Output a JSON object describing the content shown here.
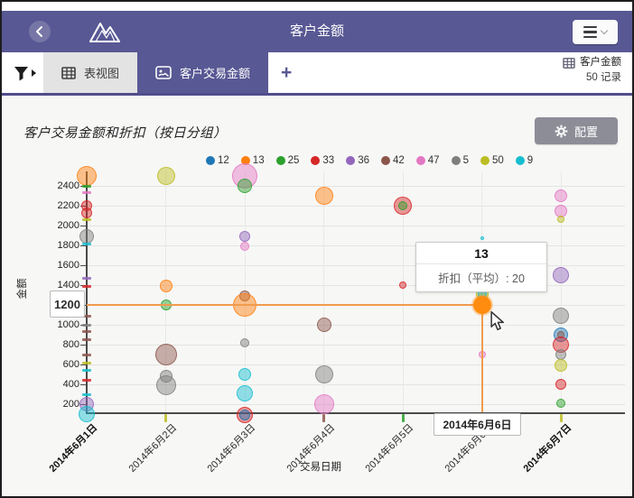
{
  "app_bar": {
    "title": "客户金额"
  },
  "tab_bar": {
    "tabs": [
      {
        "label": "表视图",
        "active": false
      },
      {
        "label": "客户交易金额",
        "active": true
      }
    ],
    "add_label": "+",
    "info_title": "客户金额",
    "info_records": "50 记录"
  },
  "chart_header": {
    "title": "客户交易金额和折扣（按日分组）",
    "config_label": "配置"
  },
  "tooltip": {
    "title": "13",
    "line": "折扣（平均）: 20"
  },
  "crosshair": {
    "x_label": "2014年6月6日",
    "y_label": "1200",
    "series": "13",
    "x_index": 6,
    "y_value": 1200
  },
  "colors": {
    "accent_purple": "#585894",
    "crosshair_orange": "#f09b4e",
    "hover_orange": "#ff8c0e"
  },
  "chart_data": {
    "type": "scatter",
    "title": "客户交易金额和折扣（按日分组）",
    "xlabel": "交易日期",
    "ylabel": "金额",
    "x_categories": [
      {
        "label": "2014年6月1日",
        "bold": true
      },
      {
        "label": "2014年6月2日",
        "bold": false
      },
      {
        "label": "2014年6月3日",
        "bold": false
      },
      {
        "label": "2014年6月4日",
        "bold": false
      },
      {
        "label": "2014年6月5日",
        "bold": false
      },
      {
        "label": "2014年6月6日",
        "bold": false
      },
      {
        "label": "2014年6月7日",
        "bold": true
      }
    ],
    "y_ticks": [
      200,
      400,
      600,
      800,
      1000,
      1200,
      1400,
      1600,
      1800,
      2000,
      2200,
      2400
    ],
    "ylim": [
      0,
      2550
    ],
    "grid": true,
    "legend_position": "top",
    "series_legend": [
      {
        "name": "12",
        "color": "#1f77b4"
      },
      {
        "name": "13",
        "color": "#ff7f0e"
      },
      {
        "name": "25",
        "color": "#2ca02c"
      },
      {
        "name": "33",
        "color": "#d62728"
      },
      {
        "name": "36",
        "color": "#9467bd"
      },
      {
        "name": "42",
        "color": "#8c564b"
      },
      {
        "name": "47",
        "color": "#e377c2"
      },
      {
        "name": "5",
        "color": "#7f7f7f"
      },
      {
        "name": "50",
        "color": "#bcbd22"
      },
      {
        "name": "9",
        "color": "#17becf"
      }
    ],
    "points": [
      {
        "series": "13",
        "x": 1,
        "y": 2500,
        "r": 11
      },
      {
        "series": "25",
        "x": 1,
        "y": 2400,
        "mark": "dash-y"
      },
      {
        "series": "47",
        "x": 1,
        "y": 2330,
        "mark": "dash-y"
      },
      {
        "series": "33",
        "x": 1,
        "y": 2200,
        "r": 6
      },
      {
        "series": "33",
        "x": 1,
        "y": 2130,
        "r": 6
      },
      {
        "series": "50",
        "x": 1,
        "y": 2060,
        "mark": "dash-y"
      },
      {
        "series": "5",
        "x": 1,
        "y": 1890,
        "r": 8
      },
      {
        "series": "9",
        "x": 1,
        "y": 1810,
        "mark": "dash-y"
      },
      {
        "series": "36",
        "x": 1,
        "y": 1470,
        "mark": "dash-y"
      },
      {
        "series": "33",
        "x": 1,
        "y": 1390,
        "mark": "dash-y"
      },
      {
        "series": "42",
        "x": 1,
        "y": 1090,
        "mark": "dash-y"
      },
      {
        "series": "5",
        "x": 1,
        "y": 1000,
        "mark": "dash-y"
      },
      {
        "series": "42",
        "x": 1,
        "y": 930,
        "mark": "dash-y"
      },
      {
        "series": "42",
        "x": 1,
        "y": 850,
        "mark": "dash-y"
      },
      {
        "series": "42",
        "x": 1,
        "y": 700,
        "mark": "dash-y"
      },
      {
        "series": "50",
        "x": 1,
        "y": 610,
        "mark": "dash-y"
      },
      {
        "series": "9",
        "x": 1,
        "y": 540,
        "mark": "dash-y"
      },
      {
        "series": "33",
        "x": 1,
        "y": 440,
        "mark": "dash-y"
      },
      {
        "series": "9",
        "x": 1,
        "y": 300,
        "mark": "dash-y"
      },
      {
        "series": "36",
        "x": 1,
        "y": 200,
        "r": 8
      },
      {
        "series": "9",
        "x": 1,
        "y": 100,
        "r": 9
      },
      {
        "series": "50",
        "x": 2,
        "y": 2500,
        "r": 10
      },
      {
        "series": "13",
        "x": 2,
        "y": 1390,
        "r": 7
      },
      {
        "series": "25",
        "x": 2,
        "y": 1200,
        "r": 6
      },
      {
        "series": "42",
        "x": 2,
        "y": 700,
        "r": 12
      },
      {
        "series": "5",
        "x": 2,
        "y": 480,
        "r": 7
      },
      {
        "series": "5",
        "x": 2,
        "y": 390,
        "r": 11
      },
      {
        "series": "50",
        "x": 2,
        "y": 0,
        "mark": "dash-x"
      },
      {
        "series": "47",
        "x": 3,
        "y": 2500,
        "r": 14
      },
      {
        "series": "25",
        "x": 3,
        "y": 2400,
        "r": 8
      },
      {
        "series": "36",
        "x": 3,
        "y": 1890,
        "r": 6
      },
      {
        "series": "47",
        "x": 3,
        "y": 1790,
        "r": 5
      },
      {
        "series": "42",
        "x": 3,
        "y": 1290,
        "r": 6
      },
      {
        "series": "13",
        "x": 3,
        "y": 1200,
        "r": 13
      },
      {
        "series": "5",
        "x": 3,
        "y": 820,
        "r": 5
      },
      {
        "series": "9",
        "x": 3,
        "y": 500,
        "r": 7
      },
      {
        "series": "9",
        "x": 3,
        "y": 310,
        "r": 9
      },
      {
        "series": "33",
        "x": 3,
        "y": 90,
        "r": 9
      },
      {
        "series": "12",
        "x": 3,
        "y": 90,
        "r": 6
      },
      {
        "series": "13",
        "x": 4,
        "y": 2300,
        "r": 10
      },
      {
        "series": "42",
        "x": 4,
        "y": 1000,
        "r": 8
      },
      {
        "series": "5",
        "x": 4,
        "y": 500,
        "r": 10
      },
      {
        "series": "47",
        "x": 4,
        "y": 200,
        "r": 11
      },
      {
        "series": "42",
        "x": 4,
        "y": 0,
        "mark": "dash-x"
      },
      {
        "series": "33",
        "x": 5,
        "y": 2200,
        "r": 10
      },
      {
        "series": "25",
        "x": 5,
        "y": 2200,
        "r": 5
      },
      {
        "series": "33",
        "x": 5,
        "y": 1400,
        "r": 4
      },
      {
        "series": "25",
        "x": 5,
        "y": 0,
        "mark": "dash-x"
      },
      {
        "series": "9",
        "x": 6,
        "y": 1870,
        "r": 2
      },
      {
        "series": "50",
        "x": 6,
        "y": 1310,
        "r": 7
      },
      {
        "series": "9",
        "x": 6,
        "y": 1310,
        "r": 5
      },
      {
        "series": "47",
        "x": 6,
        "y": 700,
        "r": 4
      },
      {
        "series": "13",
        "x": 6,
        "y": 1200,
        "r": 10,
        "hover": true
      },
      {
        "series": "47",
        "x": 7,
        "y": 2300,
        "r": 7
      },
      {
        "series": "47",
        "x": 7,
        "y": 2150,
        "r": 7
      },
      {
        "series": "50",
        "x": 7,
        "y": 2060,
        "r": 4
      },
      {
        "series": "36",
        "x": 7,
        "y": 1500,
        "r": 9
      },
      {
        "series": "5",
        "x": 7,
        "y": 1090,
        "r": 9
      },
      {
        "series": "12",
        "x": 7,
        "y": 900,
        "r": 8
      },
      {
        "series": "42",
        "x": 7,
        "y": 900,
        "r": 4
      },
      {
        "series": "33",
        "x": 7,
        "y": 800,
        "r": 9
      },
      {
        "series": "5",
        "x": 7,
        "y": 700,
        "r": 6
      },
      {
        "series": "50",
        "x": 7,
        "y": 590,
        "r": 7
      },
      {
        "series": "33",
        "x": 7,
        "y": 400,
        "r": 6
      },
      {
        "series": "25",
        "x": 7,
        "y": 210,
        "r": 5
      },
      {
        "series": "50",
        "x": 7,
        "y": 0,
        "mark": "dash-x"
      }
    ]
  }
}
